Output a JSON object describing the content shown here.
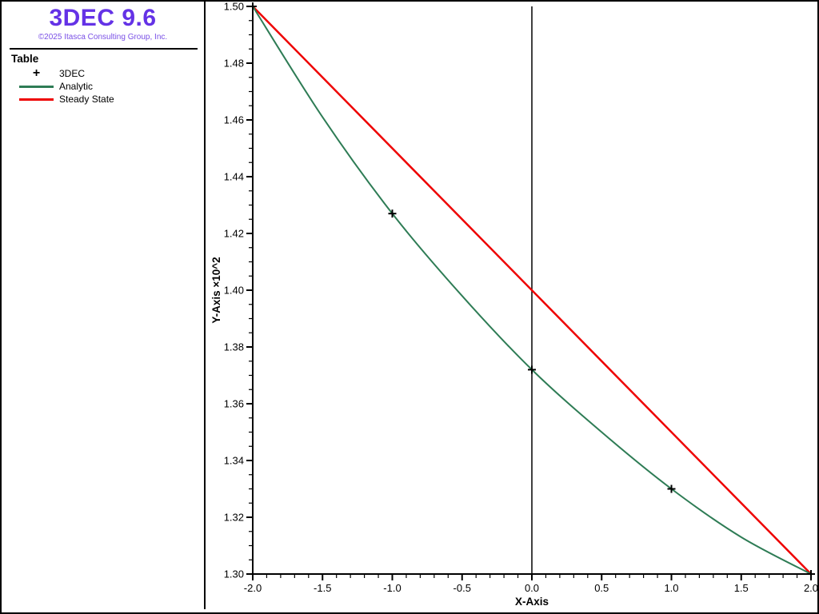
{
  "window": {
    "bg_color": "#ffffff",
    "border_color": "#000000"
  },
  "sidebar": {
    "title": "3DEC 9.6",
    "title_color": "#6432e6",
    "copyright": "©2025 Itasca Consulting Group, Inc.",
    "copyright_color": "#7a50e6",
    "legend": {
      "heading": "Table",
      "items": [
        {
          "label": "3DEC",
          "marker": "plus",
          "color": "#000000"
        },
        {
          "label": "Analytic",
          "marker": "line",
          "color": "#2e7c55"
        },
        {
          "label": "Steady State",
          "marker": "line",
          "color": "#ee0000"
        }
      ]
    }
  },
  "chart_data": {
    "type": "line",
    "title": "",
    "xlabel": "X-Axis",
    "ylabel": "Y-Axis ×10^2",
    "xlim": [
      -2.0,
      2.0
    ],
    "ylim": [
      1.3,
      1.5
    ],
    "grid": false,
    "zero_line_x": 0.0,
    "x_major_ticks": [
      -2.0,
      -1.5,
      -1.0,
      -0.5,
      0.0,
      0.5,
      1.0,
      1.5,
      2.0
    ],
    "x_tick_labels": [
      "-2.0",
      "-1.5",
      "-1.0",
      "-0.5",
      "0.0",
      "0.5",
      "1.0",
      "1.5",
      "2.0"
    ],
    "x_minor_step": 0.1,
    "y_major_ticks": [
      1.3,
      1.32,
      1.34,
      1.36,
      1.38,
      1.4,
      1.42,
      1.44,
      1.46,
      1.48,
      1.5
    ],
    "y_tick_labels": [
      "1.30",
      "1.32",
      "1.34",
      "1.36",
      "1.38",
      "1.40",
      "1.42",
      "1.44",
      "1.46",
      "1.48",
      "1.50"
    ],
    "y_minor_step": 0.005,
    "axis_color": "#000000",
    "series": [
      {
        "name": "3DEC",
        "type": "scatter",
        "marker": "plus",
        "color": "#000000",
        "x": [
          -2.0,
          -1.0,
          0.0,
          1.0,
          2.0
        ],
        "y": [
          1.5,
          1.427,
          1.372,
          1.33,
          1.3
        ]
      },
      {
        "name": "Analytic",
        "type": "line",
        "smooth": true,
        "color": "#2e7c55",
        "width": 2,
        "x": [
          -2.0,
          -1.5,
          -1.0,
          -0.5,
          0.0,
          0.5,
          1.0,
          1.5,
          2.0
        ],
        "y": [
          1.5,
          1.461,
          1.427,
          1.398,
          1.372,
          1.35,
          1.33,
          1.313,
          1.3
        ]
      },
      {
        "name": "Steady State",
        "type": "line",
        "smooth": false,
        "color": "#ee0000",
        "width": 2.5,
        "x": [
          -2.0,
          2.0
        ],
        "y": [
          1.5,
          1.3
        ]
      }
    ]
  }
}
